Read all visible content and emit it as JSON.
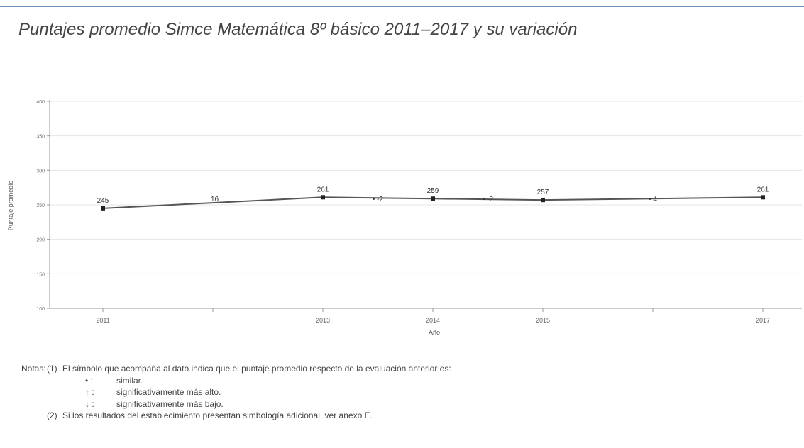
{
  "header": {
    "title": "Puntajes promedio Simce Matemática 8º básico 2011–2017 y su variación"
  },
  "chart_data": {
    "type": "line",
    "title": "Puntajes promedio Simce Matemática 8º básico 2011–2017 y su variación",
    "xlabel": "Año",
    "ylabel": "Puntaje promedio",
    "ylim": [
      100,
      400
    ],
    "yticks": [
      "100",
      "150",
      "200",
      "250",
      "300",
      "350",
      "400"
    ],
    "xlim": [
      2011,
      2017
    ],
    "xtick_labels": [
      "2011",
      "2013",
      "2014",
      "2015",
      "2017"
    ],
    "grid": true,
    "series": [
      {
        "x": [
          2011,
          2013,
          2014,
          2015,
          2017
        ],
        "values": [
          245,
          261,
          259,
          257,
          261
        ],
        "value_labels": [
          "245",
          "261",
          "259",
          "257",
          "261"
        ]
      }
    ],
    "variations": [
      {
        "x": 2012,
        "label": "↑16"
      },
      {
        "x": 2013.5,
        "label": "• -2"
      },
      {
        "x": 2014.5,
        "label": "• -2"
      },
      {
        "x": 2016,
        "label": "• 4"
      }
    ]
  },
  "notes": {
    "heading": "Notas:",
    "items": [
      {
        "num": "(1)",
        "text": "El símbolo que acompaña al dato indica que el puntaje promedio respecto de la evaluación anterior es:"
      },
      {
        "num": "(2)",
        "text": "Si los resultados del establecimiento presentan simbología adicional, ver anexo E."
      }
    ],
    "legend": [
      {
        "symbol": "• :",
        "text": "similar."
      },
      {
        "symbol": "↑ :",
        "text": "significativamente más alto."
      },
      {
        "symbol": "↓ :",
        "text": "significativamente más bajo."
      }
    ]
  }
}
